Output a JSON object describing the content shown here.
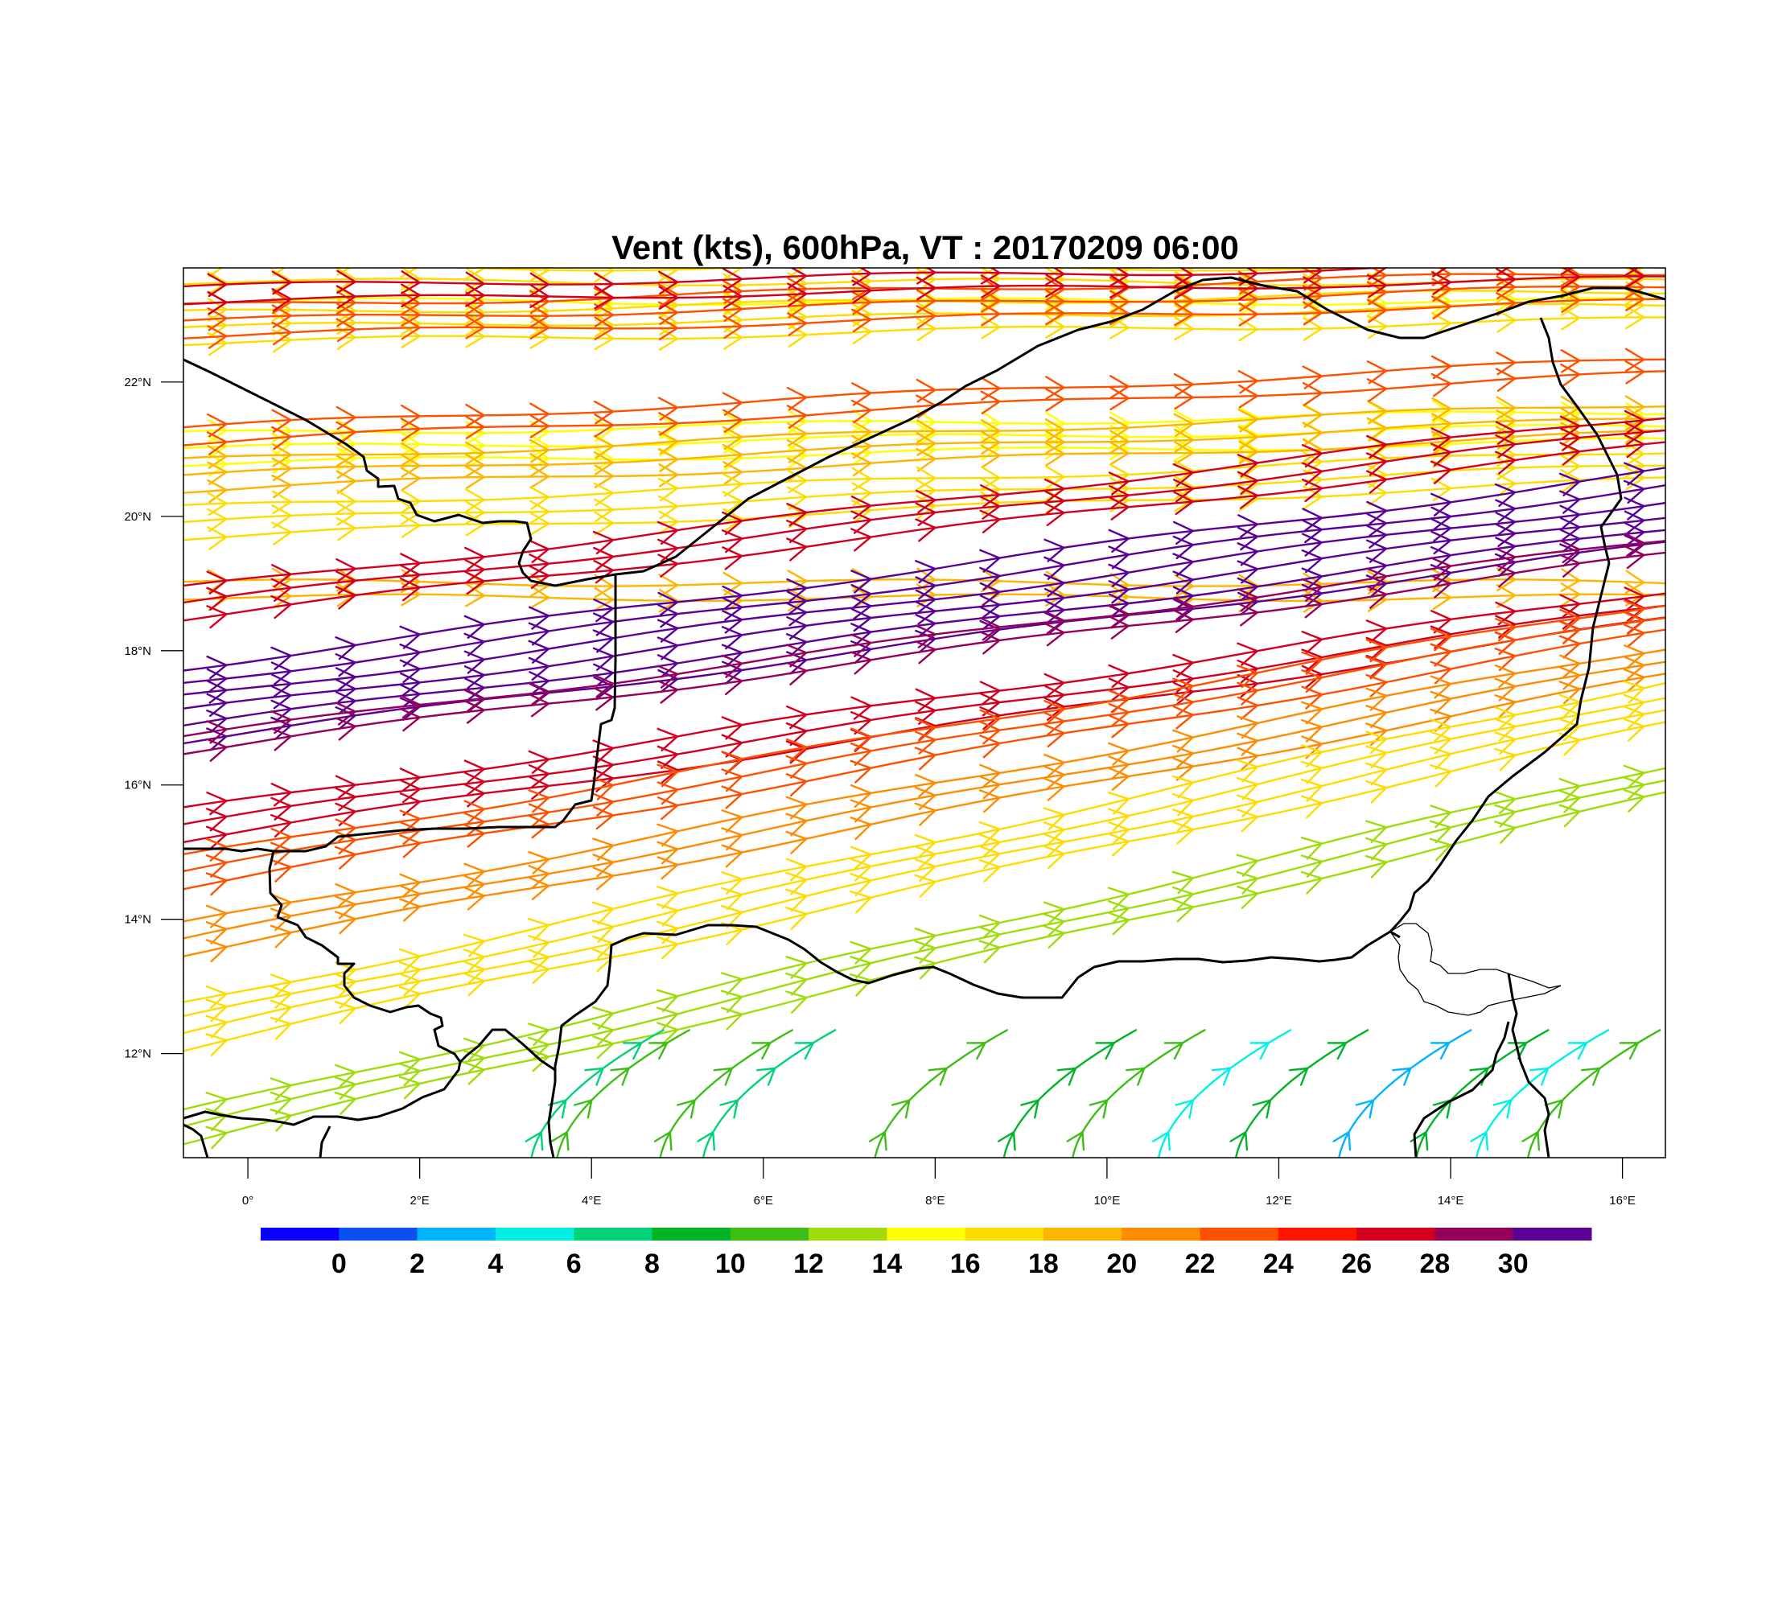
{
  "title": "Vent (kts), 600hPa, VT : 20170209  06:00",
  "map": {
    "lon_range": [
      -0.75,
      16.5
    ],
    "lat_range": [
      10.45,
      23.7
    ],
    "lon_ticks": [
      {
        "value": 0,
        "label": "0°"
      },
      {
        "value": 2,
        "label": "2°E"
      },
      {
        "value": 4,
        "label": "4°E"
      },
      {
        "value": 6,
        "label": "6°E"
      },
      {
        "value": 8,
        "label": "8°E"
      },
      {
        "value": 10,
        "label": "10°E"
      },
      {
        "value": 12,
        "label": "12°E"
      },
      {
        "value": 14,
        "label": "14°E"
      },
      {
        "value": 16,
        "label": "16°E"
      }
    ],
    "lat_ticks": [
      {
        "value": 12,
        "label": "12°N"
      },
      {
        "value": 14,
        "label": "14°N"
      },
      {
        "value": 16,
        "label": "16°N"
      },
      {
        "value": 18,
        "label": "18°N"
      },
      {
        "value": 20,
        "label": "20°N"
      },
      {
        "value": 22,
        "label": "22°N"
      }
    ]
  },
  "colorbar": {
    "colors": [
      "#0a00ff",
      "#0a50f0",
      "#00b4ff",
      "#00f0e6",
      "#00d278",
      "#00b428",
      "#3cbe14",
      "#a0dc0a",
      "#ffff00",
      "#ffdc00",
      "#ffb400",
      "#ff8c00",
      "#ff5000",
      "#ff1400",
      "#d2001e",
      "#96005a",
      "#5a0096"
    ],
    "labels": [
      "0",
      "2",
      "4",
      "6",
      "8",
      "10",
      "12",
      "14",
      "16",
      "18",
      "20",
      "22",
      "24",
      "26",
      "28",
      "30"
    ]
  },
  "wind_bands": [
    {
      "speed": 16,
      "lat0": 23.6,
      "slope": 0.0,
      "n": 2
    },
    {
      "speed": 14,
      "lat0": 23.2,
      "slope": 0.0,
      "n": 1
    },
    {
      "speed": 17,
      "lat0": 22.8,
      "slope": 0.02,
      "n": 3
    },
    {
      "speed": 22,
      "lat0": 22.9,
      "slope": 0.03,
      "n": 3
    },
    {
      "speed": 26,
      "lat0": 23.3,
      "slope": 0.02,
      "n": 2
    },
    {
      "speed": 15,
      "lat0": 21.0,
      "slope": 0.02,
      "n": 3
    },
    {
      "speed": 18,
      "lat0": 20.6,
      "slope": 0.05,
      "n": 3
    },
    {
      "speed": 22,
      "lat0": 21.2,
      "slope": 0.06,
      "n": 2
    },
    {
      "speed": 17,
      "lat0": 19.9,
      "slope": 0.05,
      "n": 3
    },
    {
      "speed": 19,
      "lat0": 18.9,
      "slope": 0.0,
      "n": 2
    },
    {
      "speed": 26,
      "lat0": 18.7,
      "slope": 0.15,
      "n": 3
    },
    {
      "speed": 30,
      "lat0": 17.2,
      "slope": 0.17,
      "n": 6
    },
    {
      "speed": 29,
      "lat0": 16.6,
      "slope": 0.17,
      "n": 2
    },
    {
      "speed": 26,
      "lat0": 15.4,
      "slope": 0.19,
      "n": 3
    },
    {
      "speed": 22,
      "lat0": 14.7,
      "slope": 0.22,
      "n": 3
    },
    {
      "speed": 20,
      "lat0": 13.7,
      "slope": 0.24,
      "n": 3
    },
    {
      "speed": 16,
      "lat0": 12.4,
      "slope": 0.28,
      "n": 4
    },
    {
      "speed": 12,
      "lat0": 10.9,
      "slope": 0.3,
      "n": 3
    }
  ],
  "south_streams": [
    {
      "speed": 10,
      "lon": 3.6
    },
    {
      "speed": 7,
      "lon": 3.3
    },
    {
      "speed": 10,
      "lon": 4.8
    },
    {
      "speed": 6,
      "lon": 5.3
    },
    {
      "speed": 11,
      "lon": 7.3
    },
    {
      "speed": 8,
      "lon": 8.8
    },
    {
      "speed": 10,
      "lon": 9.6
    },
    {
      "speed": 4,
      "lon": 10.6
    },
    {
      "speed": 9,
      "lon": 11.5
    },
    {
      "speed": 3,
      "lon": 12.7
    },
    {
      "speed": 9,
      "lon": 13.6
    },
    {
      "speed": 5,
      "lon": 14.3
    },
    {
      "speed": 10,
      "lon": 14.9
    }
  ]
}
